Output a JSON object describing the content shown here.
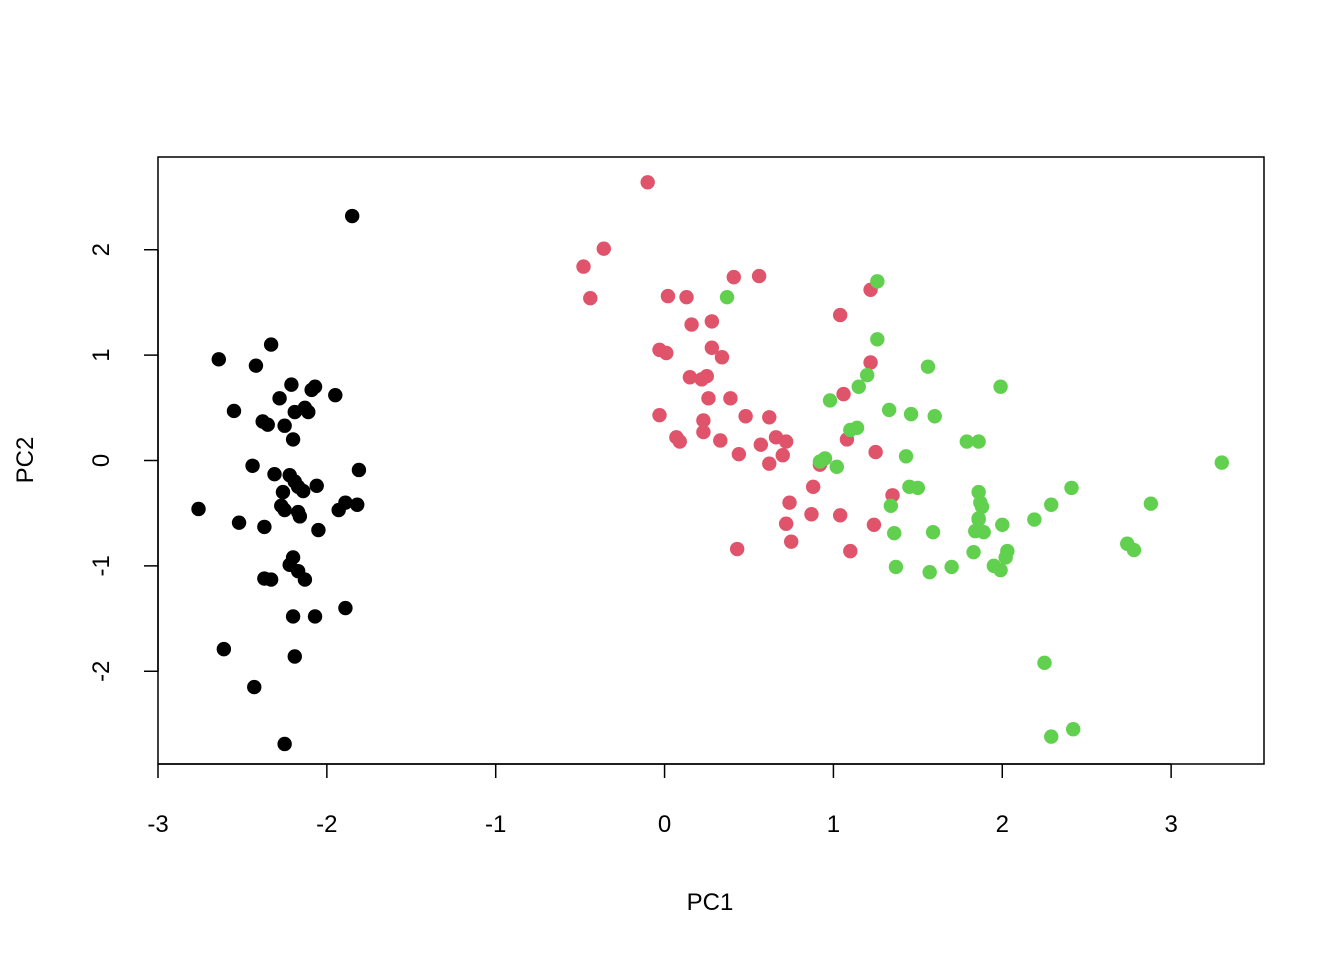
{
  "chart_data": {
    "type": "scatter",
    "xlabel": "PC1",
    "ylabel": "PC2",
    "title": "",
    "xlim": [
      -3.0,
      3.55
    ],
    "ylim": [
      -2.88,
      2.88
    ],
    "x_ticks": [
      -3,
      -2,
      -1,
      0,
      1,
      2,
      3
    ],
    "x_tick_labels": [
      "-3",
      "-2",
      "-1",
      "0",
      "1",
      "2",
      "3"
    ],
    "y_ticks": [
      -2,
      -1,
      0,
      1,
      2
    ],
    "y_tick_labels": [
      "-2",
      "-1",
      "0",
      "1",
      "2"
    ],
    "grid": false,
    "legend": false,
    "series": [
      {
        "color": "#000000",
        "points": [
          [
            -1.85,
            2.32
          ],
          [
            -2.33,
            1.1
          ],
          [
            -2.64,
            0.96
          ],
          [
            -2.42,
            0.9
          ],
          [
            -2.21,
            0.72
          ],
          [
            -2.07,
            0.7
          ],
          [
            -2.09,
            0.67
          ],
          [
            -1.95,
            0.62
          ],
          [
            -2.28,
            0.59
          ],
          [
            -2.55,
            0.47
          ],
          [
            -2.19,
            0.46
          ],
          [
            -2.13,
            0.5
          ],
          [
            -2.11,
            0.46
          ],
          [
            -2.38,
            0.37
          ],
          [
            -2.35,
            0.34
          ],
          [
            -2.25,
            0.33
          ],
          [
            -2.2,
            0.2
          ],
          [
            -2.44,
            -0.05
          ],
          [
            -2.31,
            -0.13
          ],
          [
            -2.22,
            -0.14
          ],
          [
            -2.19,
            -0.2
          ],
          [
            -2.17,
            -0.25
          ],
          [
            -2.14,
            -0.29
          ],
          [
            -2.06,
            -0.24
          ],
          [
            -1.81,
            -0.09
          ],
          [
            -1.89,
            -0.4
          ],
          [
            -1.93,
            -0.47
          ],
          [
            -1.82,
            -0.42
          ],
          [
            -2.27,
            -0.43
          ],
          [
            -2.25,
            -0.47
          ],
          [
            -2.17,
            -0.49
          ],
          [
            -2.16,
            -0.53
          ],
          [
            -2.05,
            -0.66
          ],
          [
            -2.76,
            -0.46
          ],
          [
            -2.52,
            -0.59
          ],
          [
            -2.37,
            -0.63
          ],
          [
            -2.2,
            -0.92
          ],
          [
            -2.22,
            -0.99
          ],
          [
            -2.17,
            -1.05
          ],
          [
            -2.13,
            -1.13
          ],
          [
            -2.37,
            -1.12
          ],
          [
            -2.33,
            -1.13
          ],
          [
            -2.2,
            -1.48
          ],
          [
            -2.07,
            -1.48
          ],
          [
            -1.89,
            -1.4
          ],
          [
            -2.61,
            -1.79
          ],
          [
            -2.19,
            -1.86
          ],
          [
            -2.43,
            -2.15
          ],
          [
            -2.25,
            -2.69
          ],
          [
            -2.26,
            -0.3
          ]
        ]
      },
      {
        "color": "#DF536B",
        "points": [
          [
            -0.1,
            2.64
          ],
          [
            -0.36,
            2.01
          ],
          [
            -0.48,
            1.84
          ],
          [
            -0.44,
            1.54
          ],
          [
            0.41,
            1.74
          ],
          [
            0.56,
            1.75
          ],
          [
            0.02,
            1.56
          ],
          [
            0.13,
            1.55
          ],
          [
            1.22,
            1.62
          ],
          [
            1.04,
            1.38
          ],
          [
            0.16,
            1.29
          ],
          [
            0.28,
            1.32
          ],
          [
            0.28,
            1.07
          ],
          [
            -0.03,
            1.05
          ],
          [
            0.01,
            1.02
          ],
          [
            0.34,
            0.98
          ],
          [
            1.22,
            0.93
          ],
          [
            0.25,
            0.8
          ],
          [
            0.22,
            0.77
          ],
          [
            0.15,
            0.79
          ],
          [
            1.06,
            0.63
          ],
          [
            0.39,
            0.59
          ],
          [
            -0.03,
            0.43
          ],
          [
            0.48,
            0.42
          ],
          [
            0.62,
            0.41
          ],
          [
            0.23,
            0.38
          ],
          [
            0.26,
            0.59
          ],
          [
            1.08,
            0.2
          ],
          [
            0.07,
            0.22
          ],
          [
            0.09,
            0.18
          ],
          [
            0.23,
            0.27
          ],
          [
            0.33,
            0.19
          ],
          [
            0.57,
            0.15
          ],
          [
            0.66,
            0.22
          ],
          [
            0.72,
            0.18
          ],
          [
            0.44,
            0.06
          ],
          [
            0.7,
            0.05
          ],
          [
            0.62,
            -0.03
          ],
          [
            1.25,
            0.08
          ],
          [
            0.92,
            -0.04
          ],
          [
            0.88,
            -0.25
          ],
          [
            1.35,
            -0.33
          ],
          [
            0.74,
            -0.4
          ],
          [
            0.72,
            -0.6
          ],
          [
            0.75,
            -0.77
          ],
          [
            0.87,
            -0.51
          ],
          [
            1.04,
            -0.52
          ],
          [
            1.24,
            -0.61
          ],
          [
            0.43,
            -0.84
          ],
          [
            1.1,
            -0.86
          ]
        ]
      },
      {
        "color": "#61D04F",
        "points": [
          [
            1.26,
            1.7
          ],
          [
            0.37,
            1.55
          ],
          [
            1.26,
            1.15
          ],
          [
            1.2,
            0.81
          ],
          [
            1.15,
            0.7
          ],
          [
            0.98,
            0.57
          ],
          [
            1.56,
            0.89
          ],
          [
            1.99,
            0.7
          ],
          [
            1.33,
            0.48
          ],
          [
            1.46,
            0.44
          ],
          [
            1.6,
            0.42
          ],
          [
            1.14,
            0.31
          ],
          [
            1.1,
            0.29
          ],
          [
            1.79,
            0.18
          ],
          [
            1.86,
            0.18
          ],
          [
            1.43,
            0.04
          ],
          [
            0.95,
            0.02
          ],
          [
            1.02,
            -0.06
          ],
          [
            0.92,
            -0.01
          ],
          [
            1.45,
            -0.25
          ],
          [
            1.5,
            -0.26
          ],
          [
            1.86,
            -0.3
          ],
          [
            1.87,
            -0.4
          ],
          [
            1.88,
            -0.44
          ],
          [
            1.34,
            -0.43
          ],
          [
            2.29,
            -0.42
          ],
          [
            2.41,
            -0.26
          ],
          [
            2.88,
            -0.41
          ],
          [
            3.3,
            -0.02
          ],
          [
            2.19,
            -0.56
          ],
          [
            1.36,
            -0.69
          ],
          [
            1.59,
            -0.68
          ],
          [
            1.84,
            -0.67
          ],
          [
            1.89,
            -0.68
          ],
          [
            1.86,
            -0.56
          ],
          [
            2.0,
            -0.61
          ],
          [
            2.74,
            -0.79
          ],
          [
            2.78,
            -0.85
          ],
          [
            1.83,
            -0.87
          ],
          [
            2.03,
            -0.86
          ],
          [
            2.02,
            -0.92
          ],
          [
            1.37,
            -1.01
          ],
          [
            1.57,
            -1.06
          ],
          [
            1.7,
            -1.01
          ],
          [
            1.95,
            -1.0
          ],
          [
            1.99,
            -1.04
          ],
          [
            2.25,
            -1.92
          ],
          [
            2.42,
            -2.55
          ],
          [
            2.29,
            -2.62
          ],
          [
            1.86,
            -0.55
          ]
        ]
      }
    ]
  }
}
